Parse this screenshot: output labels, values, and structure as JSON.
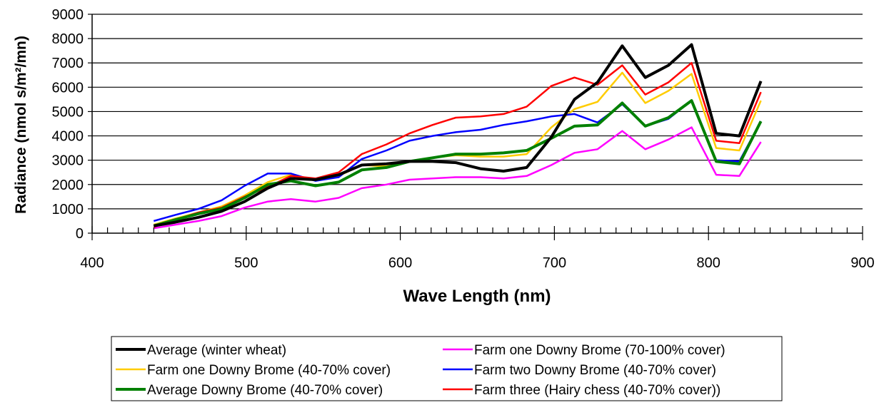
{
  "chart_data": {
    "type": "line",
    "title": "",
    "xlabel": "Wave Length (nm)",
    "ylabel": "Radiance (nmol s/m²/mn)",
    "xlim": [
      400,
      900
    ],
    "ylim": [
      0,
      9000
    ],
    "x_ticks": [
      400,
      500,
      600,
      700,
      800,
      900
    ],
    "y_ticks": [
      0,
      1000,
      2000,
      3000,
      4000,
      5000,
      6000,
      7000,
      8000,
      9000
    ],
    "grid": "horizontal",
    "legend_position": "bottom",
    "x": [
      440,
      454,
      469,
      484,
      499,
      514,
      529,
      545,
      560,
      575,
      591,
      606,
      621,
      636,
      652,
      667,
      682,
      698,
      713,
      728,
      744,
      759,
      774,
      789,
      805,
      820,
      834
    ],
    "series": [
      {
        "name": "Average (winter wheat)",
        "color": "#000000",
        "width": 4,
        "values": [
          300,
          450,
          650,
          900,
          1300,
          1850,
          2250,
          2200,
          2400,
          2800,
          2850,
          2950,
          2950,
          2900,
          2650,
          2550,
          2700,
          3950,
          5500,
          6200,
          7700,
          6400,
          6900,
          7750,
          4100,
          4000,
          6250
        ]
      },
      {
        "name": "Farm one Downy Brome (40-70% cover)",
        "color": "#FFCC00",
        "width": 2.5,
        "values": [
          350,
          600,
          850,
          1100,
          1550,
          2100,
          2400,
          2200,
          2350,
          2800,
          2750,
          2950,
          3100,
          3200,
          3150,
          3150,
          3250,
          4350,
          5100,
          5400,
          6600,
          5350,
          5850,
          6550,
          3500,
          3400,
          5450
        ]
      },
      {
        "name": "Average Downy Brome (40-70% cover)",
        "color": "#008000",
        "width": 4,
        "values": [
          300,
          550,
          800,
          1000,
          1450,
          2000,
          2150,
          1950,
          2100,
          2600,
          2700,
          2950,
          3100,
          3250,
          3250,
          3300,
          3400,
          3900,
          4400,
          4450,
          5350,
          4400,
          4750,
          5450,
          2950,
          2850,
          4600
        ]
      },
      {
        "name": "Farm one Downy Brome (70-100% cover)",
        "color": "#FF00FF",
        "width": 2.5,
        "values": [
          200,
          350,
          500,
          700,
          1050,
          1300,
          1400,
          1300,
          1450,
          1850,
          2000,
          2200,
          2250,
          2300,
          2300,
          2250,
          2350,
          2800,
          3300,
          3450,
          4200,
          3450,
          3850,
          4350,
          2400,
          2350,
          3750
        ]
      },
      {
        "name": "Farm two Downy Brome (40-70% cover)",
        "color": "#0000FF",
        "width": 2.5,
        "values": [
          500,
          750,
          1000,
          1350,
          1950,
          2450,
          2450,
          2150,
          2300,
          3050,
          3400,
          3800,
          4000,
          4150,
          4250,
          4450,
          4600,
          4800,
          4900,
          4550,
          5300,
          4400,
          4700,
          5450,
          3000,
          2950,
          4600
        ]
      },
      {
        "name": "Farm three (Hairy chess (40-70% cover))",
        "color": "#FF0000",
        "width": 2.5,
        "values": [
          250,
          550,
          850,
          1050,
          1500,
          1900,
          2350,
          2250,
          2500,
          3250,
          3650,
          4100,
          4450,
          4750,
          4800,
          4900,
          5200,
          6050,
          6400,
          6100,
          6900,
          5700,
          6200,
          7000,
          3800,
          3700,
          5800
        ]
      }
    ]
  }
}
